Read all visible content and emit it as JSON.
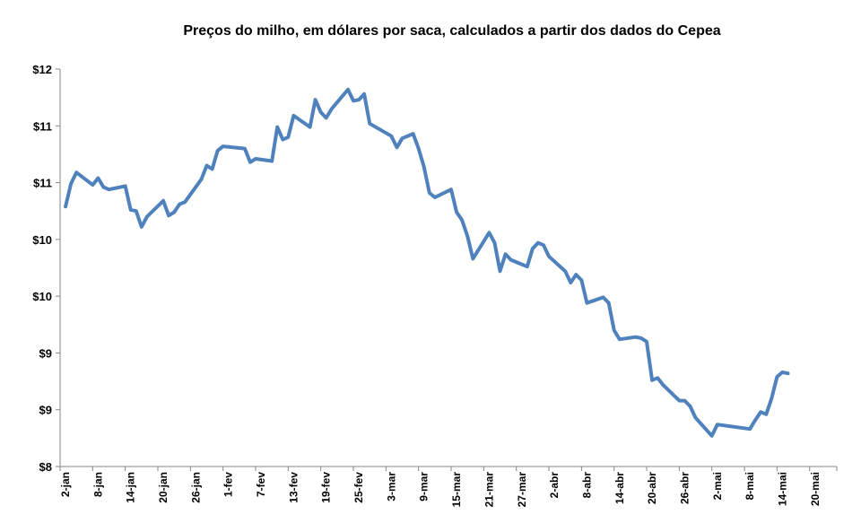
{
  "chart_data": {
    "type": "line",
    "title": "Preços do milho, em dólares por saca, calculados a partir dos dados do Cepea",
    "xlabel": "",
    "ylabel": "",
    "grid": false,
    "legend": "none",
    "line_color": "#4F81BD",
    "axis_color": "#868686",
    "x_range": [
      0,
      143
    ],
    "ylim": [
      8,
      11.5
    ],
    "y_ticks": [
      {
        "value": 8.0,
        "label": "$8"
      },
      {
        "value": 8.5,
        "label": "$9"
      },
      {
        "value": 9.0,
        "label": "$9"
      },
      {
        "value": 9.5,
        "label": "$10"
      },
      {
        "value": 10.0,
        "label": "$10"
      },
      {
        "value": 10.5,
        "label": "$11"
      },
      {
        "value": 11.0,
        "label": "$11"
      },
      {
        "value": 11.5,
        "label": "$12"
      }
    ],
    "x_ticks": [
      {
        "day": 1,
        "label": "2-jan"
      },
      {
        "day": 7,
        "label": "8-jan"
      },
      {
        "day": 13,
        "label": "14-jan"
      },
      {
        "day": 19,
        "label": "20-jan"
      },
      {
        "day": 25,
        "label": "26-jan"
      },
      {
        "day": 31,
        "label": "1-fev"
      },
      {
        "day": 37,
        "label": "7-fev"
      },
      {
        "day": 43,
        "label": "13-fev"
      },
      {
        "day": 49,
        "label": "19-fev"
      },
      {
        "day": 55,
        "label": "25-fev"
      },
      {
        "day": 61,
        "label": "3-mar"
      },
      {
        "day": 67,
        "label": "9-mar"
      },
      {
        "day": 73,
        "label": "15-mar"
      },
      {
        "day": 79,
        "label": "21-mar"
      },
      {
        "day": 85,
        "label": "27-mar"
      },
      {
        "day": 91,
        "label": "2-abr"
      },
      {
        "day": 97,
        "label": "8-abr"
      },
      {
        "day": 103,
        "label": "14-abr"
      },
      {
        "day": 109,
        "label": "20-abr"
      },
      {
        "day": 115,
        "label": "26-abr"
      },
      {
        "day": 121,
        "label": "2-mai"
      },
      {
        "day": 127,
        "label": "8-mai"
      },
      {
        "day": 133,
        "label": "14-mai"
      },
      {
        "day": 139,
        "label": "20-mai"
      }
    ],
    "series": [
      {
        "points": [
          [
            1,
            10.29
          ],
          [
            2,
            10.49
          ],
          [
            3,
            10.59
          ],
          [
            6,
            10.48
          ],
          [
            7,
            10.54
          ],
          [
            8,
            10.46
          ],
          [
            9,
            10.44
          ],
          [
            12,
            10.47
          ],
          [
            13,
            10.26
          ],
          [
            14,
            10.25
          ],
          [
            15,
            10.11
          ],
          [
            16,
            10.2
          ],
          [
            19,
            10.34
          ],
          [
            20,
            10.21
          ],
          [
            21,
            10.24
          ],
          [
            22,
            10.31
          ],
          [
            23,
            10.33
          ],
          [
            26,
            10.53
          ],
          [
            27,
            10.65
          ],
          [
            28,
            10.62
          ],
          [
            29,
            10.78
          ],
          [
            30,
            10.82
          ],
          [
            34,
            10.8
          ],
          [
            35,
            10.68
          ],
          [
            36,
            10.71
          ],
          [
            39,
            10.69
          ],
          [
            40,
            10.99
          ],
          [
            41,
            10.88
          ],
          [
            42,
            10.9
          ],
          [
            43,
            11.09
          ],
          [
            46,
            10.99
          ],
          [
            47,
            11.23
          ],
          [
            48,
            11.12
          ],
          [
            49,
            11.07
          ],
          [
            50,
            11.15
          ],
          [
            53,
            11.32
          ],
          [
            54,
            11.22
          ],
          [
            55,
            11.23
          ],
          [
            56,
            11.28
          ],
          [
            57,
            11.02
          ],
          [
            61,
            10.91
          ],
          [
            62,
            10.81
          ],
          [
            63,
            10.89
          ],
          [
            65,
            10.93
          ],
          [
            66,
            10.8
          ],
          [
            67,
            10.64
          ],
          [
            68,
            10.41
          ],
          [
            69,
            10.37
          ],
          [
            72,
            10.44
          ],
          [
            73,
            10.24
          ],
          [
            74,
            10.17
          ],
          [
            75,
            10.03
          ],
          [
            76,
            9.83
          ],
          [
            79,
            10.06
          ],
          [
            80,
            9.97
          ],
          [
            81,
            9.72
          ],
          [
            82,
            9.87
          ],
          [
            83,
            9.82
          ],
          [
            86,
            9.76
          ],
          [
            87,
            9.92
          ],
          [
            88,
            9.97
          ],
          [
            89,
            9.95
          ],
          [
            90,
            9.85
          ],
          [
            93,
            9.72
          ],
          [
            94,
            9.62
          ],
          [
            95,
            9.69
          ],
          [
            96,
            9.64
          ],
          [
            97,
            9.44
          ],
          [
            100,
            9.49
          ],
          [
            101,
            9.44
          ],
          [
            102,
            9.2
          ],
          [
            103,
            9.12
          ],
          [
            106,
            9.14
          ],
          [
            107,
            9.13
          ],
          [
            108,
            9.1
          ],
          [
            109,
            8.76
          ],
          [
            110,
            8.78
          ],
          [
            111,
            8.72
          ],
          [
            114,
            8.58
          ],
          [
            115,
            8.58
          ],
          [
            116,
            8.53
          ],
          [
            117,
            8.43
          ],
          [
            120,
            8.27
          ],
          [
            121,
            8.37
          ],
          [
            124,
            8.35
          ],
          [
            127,
            8.33
          ],
          [
            128,
            8.41
          ],
          [
            129,
            8.48
          ],
          [
            130,
            8.46
          ],
          [
            131,
            8.6
          ],
          [
            132,
            8.79
          ],
          [
            133,
            8.83
          ],
          [
            134,
            8.82
          ]
        ]
      }
    ]
  }
}
